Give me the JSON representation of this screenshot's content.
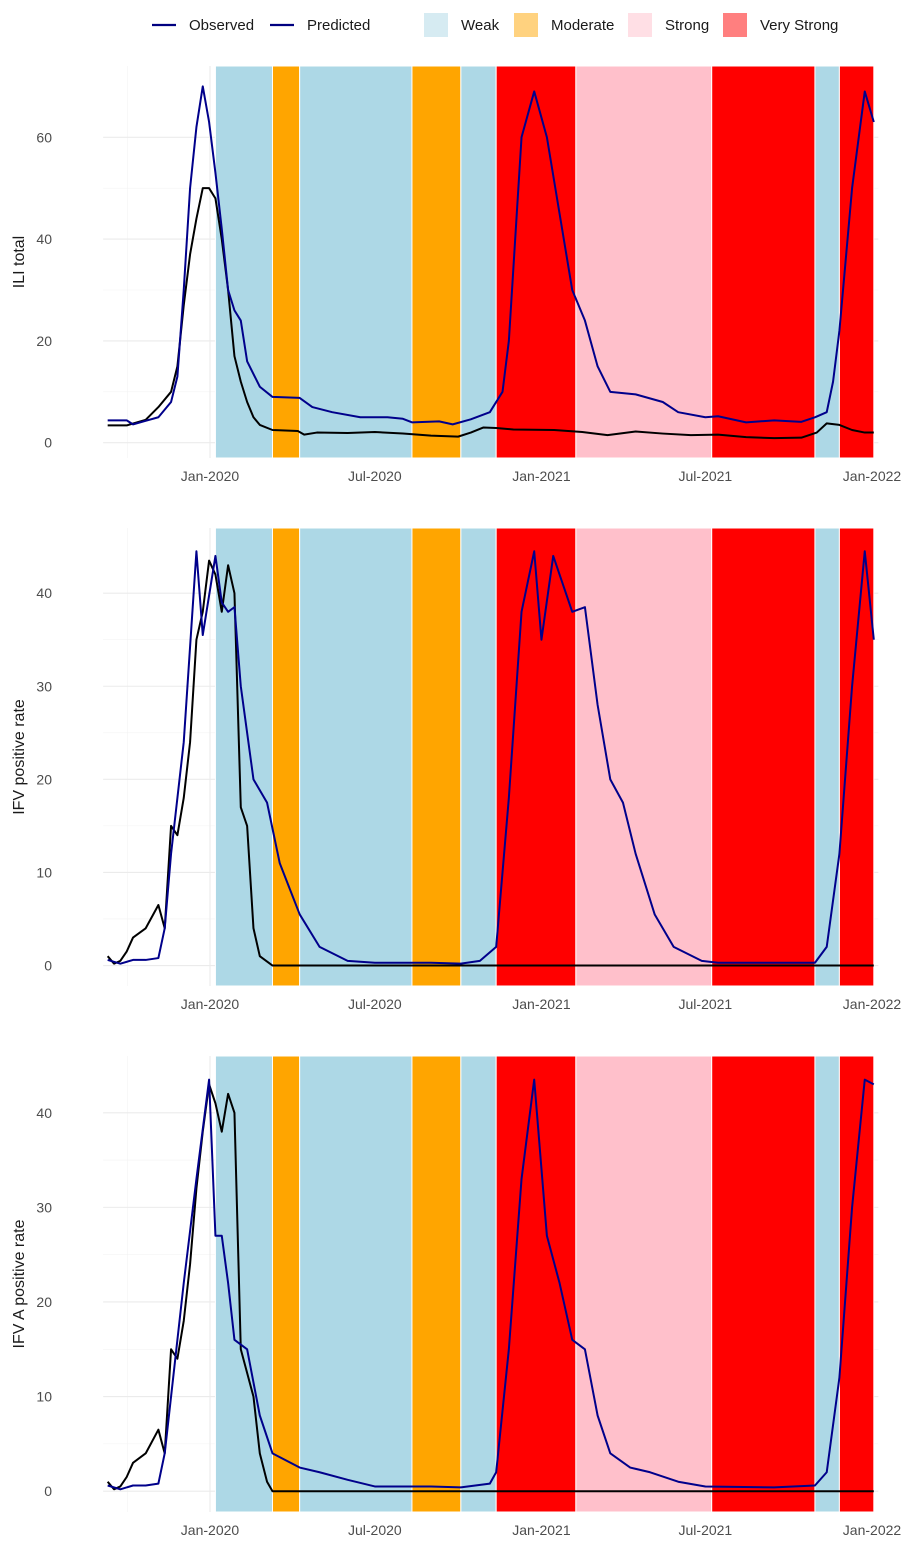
{
  "chart_data": {
    "type": "line",
    "legend": {
      "position": "top",
      "lines": [
        {
          "label": "Observed",
          "color": "#000080"
        },
        {
          "label": "Predicted",
          "color": "#000080"
        }
      ],
      "bands": [
        {
          "label": "Weak",
          "color": "#add8e6"
        },
        {
          "label": "Moderate",
          "color": "#ffa500"
        },
        {
          "label": "Strong",
          "color": "#ffc0cb"
        },
        {
          "label": "Very Strong",
          "color": "#ff0000"
        }
      ]
    },
    "colors": {
      "observed": "#000000",
      "predicted": "#00008b",
      "Weak": "#add8e6",
      "Moderate": "#ffa500",
      "Strong": "#ffc0cb",
      "Very Strong": "#ff0000"
    },
    "x_ticks": [
      {
        "date": "2020-01-01",
        "label": "Jan-2020"
      },
      {
        "date": "2020-07-01",
        "label": "Jul-2020"
      },
      {
        "date": "2021-01-01",
        "label": "Jan-2021"
      },
      {
        "date": "2021-07-01",
        "label": "Jul-2021"
      },
      {
        "date": "2022-01-01",
        "label": "Jan-2022"
      }
    ],
    "xlim": [
      "2019-09-05",
      "2022-01-08"
    ],
    "grid": true,
    "bands": [
      {
        "start": "2020-01-07",
        "end": "2020-03-10",
        "level": "Weak"
      },
      {
        "start": "2020-03-10",
        "end": "2020-04-09",
        "level": "Moderate"
      },
      {
        "start": "2020-04-09",
        "end": "2020-08-11",
        "level": "Weak"
      },
      {
        "start": "2020-08-11",
        "end": "2020-10-04",
        "level": "Moderate"
      },
      {
        "start": "2020-10-04",
        "end": "2020-11-12",
        "level": "Weak"
      },
      {
        "start": "2020-11-12",
        "end": "2021-02-08",
        "level": "Very Strong"
      },
      {
        "start": "2021-02-08",
        "end": "2021-07-08",
        "level": "Strong"
      },
      {
        "start": "2021-07-08",
        "end": "2021-10-30",
        "level": "Very Strong"
      },
      {
        "start": "2021-10-30",
        "end": "2021-11-26",
        "level": "Weak"
      },
      {
        "start": "2021-11-26",
        "end": "2022-01-03",
        "level": "Very Strong"
      }
    ],
    "panels": [
      {
        "ylabel": "ILI total",
        "ylim": [
          -3,
          74
        ],
        "yticks": [
          0,
          20,
          40,
          60
        ],
        "observed": [
          [
            "2019-09-10",
            3.4
          ],
          [
            "2019-10-01",
            3.4
          ],
          [
            "2019-10-22",
            4.5
          ],
          [
            "2019-11-05",
            7
          ],
          [
            "2019-11-19",
            10
          ],
          [
            "2019-11-26",
            15
          ],
          [
            "2019-12-03",
            27
          ],
          [
            "2019-12-10",
            37
          ],
          [
            "2019-12-17",
            44
          ],
          [
            "2019-12-24",
            50
          ],
          [
            "2019-12-31",
            50
          ],
          [
            "2020-01-07",
            48
          ],
          [
            "2020-01-14",
            40
          ],
          [
            "2020-01-21",
            30
          ],
          [
            "2020-01-28",
            17
          ],
          [
            "2020-02-04",
            12
          ],
          [
            "2020-02-11",
            8
          ],
          [
            "2020-02-18",
            5
          ],
          [
            "2020-02-25",
            3.5
          ],
          [
            "2020-03-10",
            2.5
          ],
          [
            "2020-04-07",
            2.3
          ],
          [
            "2020-04-14",
            1.6
          ],
          [
            "2020-04-28",
            2
          ],
          [
            "2020-06-01",
            1.9
          ],
          [
            "2020-07-01",
            2.1
          ],
          [
            "2020-08-01",
            1.8
          ],
          [
            "2020-09-01",
            1.4
          ],
          [
            "2020-10-01",
            1.2
          ],
          [
            "2020-10-15",
            2
          ],
          [
            "2020-10-29",
            3
          ],
          [
            "2020-11-12",
            2.9
          ],
          [
            "2020-12-01",
            2.6
          ],
          [
            "2021-01-15",
            2.5
          ],
          [
            "2021-02-15",
            2.1
          ],
          [
            "2021-03-15",
            1.5
          ],
          [
            "2021-04-15",
            2.2
          ],
          [
            "2021-05-15",
            1.8
          ],
          [
            "2021-06-15",
            1.5
          ],
          [
            "2021-07-15",
            1.6
          ],
          [
            "2021-08-15",
            1.1
          ],
          [
            "2021-09-15",
            0.9
          ],
          [
            "2021-10-15",
            1
          ],
          [
            "2021-11-01",
            2
          ],
          [
            "2021-11-12",
            3.8
          ],
          [
            "2021-11-26",
            3.5
          ],
          [
            "2021-12-10",
            2.5
          ],
          [
            "2021-12-24",
            2
          ],
          [
            "2022-01-03",
            2
          ]
        ],
        "predicted": [
          [
            "2019-09-10",
            4.4
          ],
          [
            "2019-10-01",
            4.4
          ],
          [
            "2019-10-08",
            3.6
          ],
          [
            "2019-10-22",
            4.3
          ],
          [
            "2019-11-05",
            5
          ],
          [
            "2019-11-19",
            8
          ],
          [
            "2019-11-26",
            13
          ],
          [
            "2019-12-03",
            30
          ],
          [
            "2019-12-10",
            50
          ],
          [
            "2019-12-17",
            62
          ],
          [
            "2019-12-24",
            70
          ],
          [
            "2019-12-31",
            63
          ],
          [
            "2020-01-07",
            53
          ],
          [
            "2020-01-14",
            42
          ],
          [
            "2020-01-21",
            30
          ],
          [
            "2020-01-28",
            26
          ],
          [
            "2020-02-04",
            24
          ],
          [
            "2020-02-11",
            16
          ],
          [
            "2020-02-25",
            11
          ],
          [
            "2020-03-10",
            9
          ],
          [
            "2020-04-09",
            8.8
          ],
          [
            "2020-04-23",
            7
          ],
          [
            "2020-05-15",
            6
          ],
          [
            "2020-06-15",
            5
          ],
          [
            "2020-07-15",
            5
          ],
          [
            "2020-08-01",
            4.7
          ],
          [
            "2020-08-11",
            4
          ],
          [
            "2020-09-10",
            4.2
          ],
          [
            "2020-09-25",
            3.6
          ],
          [
            "2020-10-15",
            4.6
          ],
          [
            "2020-11-05",
            6
          ],
          [
            "2020-11-19",
            10
          ],
          [
            "2020-11-26",
            20
          ],
          [
            "2020-12-03",
            40
          ],
          [
            "2020-12-10",
            60
          ],
          [
            "2020-12-24",
            69
          ],
          [
            "2021-01-07",
            60
          ],
          [
            "2021-01-21",
            45
          ],
          [
            "2021-02-04",
            30
          ],
          [
            "2021-02-18",
            24
          ],
          [
            "2021-03-04",
            15
          ],
          [
            "2021-03-18",
            10
          ],
          [
            "2021-04-15",
            9.5
          ],
          [
            "2021-05-15",
            8
          ],
          [
            "2021-06-01",
            6
          ],
          [
            "2021-07-01",
            5
          ],
          [
            "2021-07-15",
            5.2
          ],
          [
            "2021-08-15",
            4
          ],
          [
            "2021-09-15",
            4.4
          ],
          [
            "2021-10-15",
            4.1
          ],
          [
            "2021-10-30",
            5
          ],
          [
            "2021-11-12",
            6
          ],
          [
            "2021-11-19",
            12
          ],
          [
            "2021-11-26",
            22
          ],
          [
            "2021-12-10",
            50
          ],
          [
            "2021-12-24",
            69
          ],
          [
            "2022-01-03",
            63
          ]
        ]
      },
      {
        "ylabel": "IFV positive rate",
        "ylim": [
          -2.2,
          47
        ],
        "yticks": [
          0,
          10,
          20,
          30,
          40
        ],
        "observed": [
          [
            "2019-09-10",
            1
          ],
          [
            "2019-09-17",
            0.2
          ],
          [
            "2019-09-24",
            0.5
          ],
          [
            "2019-10-01",
            1.5
          ],
          [
            "2019-10-08",
            3
          ],
          [
            "2019-10-22",
            4
          ],
          [
            "2019-11-05",
            6.5
          ],
          [
            "2019-11-12",
            4
          ],
          [
            "2019-11-19",
            15
          ],
          [
            "2019-11-26",
            14
          ],
          [
            "2019-12-03",
            18
          ],
          [
            "2019-12-10",
            24
          ],
          [
            "2019-12-17",
            35
          ],
          [
            "2019-12-24",
            38
          ],
          [
            "2019-12-31",
            43.5
          ],
          [
            "2020-01-07",
            42
          ],
          [
            "2020-01-14",
            38
          ],
          [
            "2020-01-21",
            43
          ],
          [
            "2020-01-28",
            40
          ],
          [
            "2020-02-04",
            17
          ],
          [
            "2020-02-11",
            15
          ],
          [
            "2020-02-18",
            4
          ],
          [
            "2020-02-25",
            1
          ],
          [
            "2020-03-10",
            0
          ],
          [
            "2022-01-03",
            0
          ]
        ],
        "predicted": [
          [
            "2019-09-10",
            0.6
          ],
          [
            "2019-09-24",
            0.2
          ],
          [
            "2019-10-08",
            0.6
          ],
          [
            "2019-10-22",
            0.6
          ],
          [
            "2019-11-05",
            0.8
          ],
          [
            "2019-11-12",
            4
          ],
          [
            "2019-11-19",
            12
          ],
          [
            "2019-12-03",
            24
          ],
          [
            "2019-12-17",
            44.5
          ],
          [
            "2019-12-24",
            35.5
          ],
          [
            "2020-01-07",
            44
          ],
          [
            "2020-01-14",
            39
          ],
          [
            "2020-01-21",
            38
          ],
          [
            "2020-01-28",
            38.5
          ],
          [
            "2020-02-04",
            30
          ],
          [
            "2020-02-18",
            20
          ],
          [
            "2020-03-04",
            17.5
          ],
          [
            "2020-03-18",
            11
          ],
          [
            "2020-04-09",
            5.5
          ],
          [
            "2020-05-01",
            2
          ],
          [
            "2020-06-01",
            0.5
          ],
          [
            "2020-07-01",
            0.3
          ],
          [
            "2020-09-01",
            0.3
          ],
          [
            "2020-10-04",
            0.2
          ],
          [
            "2020-10-25",
            0.5
          ],
          [
            "2020-11-12",
            2
          ],
          [
            "2020-11-26",
            18
          ],
          [
            "2020-12-10",
            38
          ],
          [
            "2020-12-24",
            44.5
          ],
          [
            "2021-01-01",
            35
          ],
          [
            "2021-01-14",
            44
          ],
          [
            "2021-02-04",
            38
          ],
          [
            "2021-02-18",
            38.5
          ],
          [
            "2021-03-04",
            28
          ],
          [
            "2021-03-18",
            20
          ],
          [
            "2021-04-01",
            17.5
          ],
          [
            "2021-04-15",
            12
          ],
          [
            "2021-05-06",
            5.5
          ],
          [
            "2021-05-27",
            2
          ],
          [
            "2021-06-27",
            0.5
          ],
          [
            "2021-07-15",
            0.3
          ],
          [
            "2021-09-15",
            0.3
          ],
          [
            "2021-10-30",
            0.3
          ],
          [
            "2021-11-12",
            2
          ],
          [
            "2021-11-26",
            12
          ],
          [
            "2021-12-10",
            30
          ],
          [
            "2021-12-24",
            44.5
          ],
          [
            "2022-01-03",
            35
          ]
        ]
      },
      {
        "ylabel": "IFV A positive rate",
        "ylim": [
          -2.2,
          46
        ],
        "yticks": [
          0,
          10,
          20,
          30,
          40
        ],
        "observed": [
          [
            "2019-09-10",
            1
          ],
          [
            "2019-09-17",
            0.2
          ],
          [
            "2019-09-24",
            0.5
          ],
          [
            "2019-10-01",
            1.5
          ],
          [
            "2019-10-08",
            3
          ],
          [
            "2019-10-22",
            4
          ],
          [
            "2019-11-05",
            6.5
          ],
          [
            "2019-11-12",
            4
          ],
          [
            "2019-11-19",
            15
          ],
          [
            "2019-11-26",
            14
          ],
          [
            "2019-12-03",
            18
          ],
          [
            "2019-12-10",
            24
          ],
          [
            "2019-12-17",
            32
          ],
          [
            "2019-12-24",
            38
          ],
          [
            "2019-12-31",
            43
          ],
          [
            "2020-01-07",
            41
          ],
          [
            "2020-01-14",
            38
          ],
          [
            "2020-01-21",
            42
          ],
          [
            "2020-01-28",
            40
          ],
          [
            "2020-02-04",
            15
          ],
          [
            "2020-02-18",
            10
          ],
          [
            "2020-02-25",
            4
          ],
          [
            "2020-03-04",
            1
          ],
          [
            "2020-03-10",
            0
          ],
          [
            "2022-01-03",
            0
          ]
        ],
        "predicted": [
          [
            "2019-09-10",
            0.6
          ],
          [
            "2019-09-24",
            0.2
          ],
          [
            "2019-10-08",
            0.6
          ],
          [
            "2019-10-22",
            0.6
          ],
          [
            "2019-11-05",
            0.8
          ],
          [
            "2019-11-12",
            4
          ],
          [
            "2019-11-19",
            10
          ],
          [
            "2019-12-03",
            22
          ],
          [
            "2019-12-17",
            33
          ],
          [
            "2019-12-31",
            43.5
          ],
          [
            "2020-01-07",
            27
          ],
          [
            "2020-01-14",
            27
          ],
          [
            "2020-01-21",
            22
          ],
          [
            "2020-01-28",
            16
          ],
          [
            "2020-02-11",
            15
          ],
          [
            "2020-02-25",
            8
          ],
          [
            "2020-03-10",
            4
          ],
          [
            "2020-04-09",
            2.5
          ],
          [
            "2020-05-01",
            2
          ],
          [
            "2020-06-01",
            1.2
          ],
          [
            "2020-07-01",
            0.5
          ],
          [
            "2020-09-01",
            0.5
          ],
          [
            "2020-10-04",
            0.4
          ],
          [
            "2020-11-05",
            0.8
          ],
          [
            "2020-11-12",
            2
          ],
          [
            "2020-11-26",
            15
          ],
          [
            "2020-12-10",
            33
          ],
          [
            "2020-12-24",
            43.5
          ],
          [
            "2021-01-07",
            27
          ],
          [
            "2021-01-21",
            22
          ],
          [
            "2021-02-04",
            16
          ],
          [
            "2021-02-18",
            15
          ],
          [
            "2021-03-04",
            8
          ],
          [
            "2021-03-18",
            4
          ],
          [
            "2021-04-09",
            2.5
          ],
          [
            "2021-05-01",
            2
          ],
          [
            "2021-06-01",
            1
          ],
          [
            "2021-07-01",
            0.5
          ],
          [
            "2021-09-15",
            0.4
          ],
          [
            "2021-10-30",
            0.6
          ],
          [
            "2021-11-12",
            2
          ],
          [
            "2021-11-26",
            12
          ],
          [
            "2021-12-10",
            30
          ],
          [
            "2021-12-24",
            43.5
          ],
          [
            "2022-01-03",
            43
          ]
        ]
      }
    ]
  }
}
